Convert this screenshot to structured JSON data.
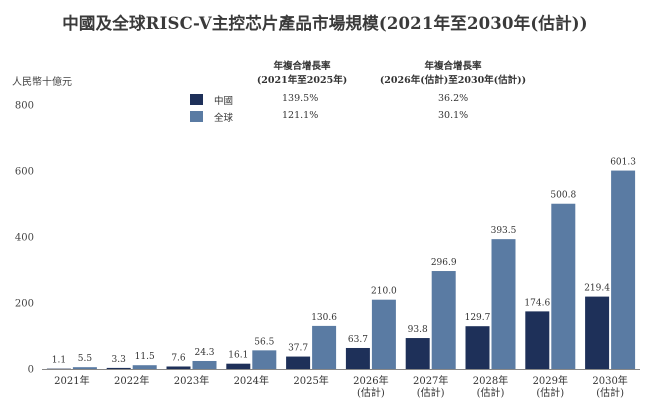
{
  "title": "中國及全球RISC-V主控芯片產品市場規模(2021年至2030年(估計))",
  "unit_label": "人民幣十億元",
  "cagr": {
    "header_1_line1": "年複合增長率",
    "header_1_line2": "(2021年至2025年)",
    "header_2_line1": "年複合增長率",
    "header_2_line2": "(2026年(估計)至2030年(估計))",
    "rows": [
      {
        "name": "中國",
        "color": "#1e3059",
        "cagr_1": "139.5%",
        "cagr_2": "36.2%"
      },
      {
        "name": "全球",
        "color": "#5a7ba3",
        "cagr_1": "121.1%",
        "cagr_2": "30.1%"
      }
    ]
  },
  "chart_data": {
    "type": "bar",
    "title": "中國及全球RISC-V主控芯片產品市場規模(2021年至2030年(估計))",
    "ylabel": "人民幣十億元",
    "ylim": [
      0,
      800
    ],
    "yticks": [
      "0",
      "200",
      "400",
      "600",
      "800"
    ],
    "grid": false,
    "categories": [
      [
        "2021年"
      ],
      [
        "2022年"
      ],
      [
        "2023年"
      ],
      [
        "2024年"
      ],
      [
        "2025年"
      ],
      [
        "2026年",
        "(估計)"
      ],
      [
        "2027年",
        "(估計)"
      ],
      [
        "2028年",
        "(估計)"
      ],
      [
        "2029年",
        "(估計)"
      ],
      [
        "2030年",
        "(估計)"
      ]
    ],
    "series": [
      {
        "name": "中國",
        "color": "#1e3059",
        "values": [
          1.1,
          3.3,
          7.6,
          16.1,
          37.7,
          63.7,
          93.8,
          129.7,
          174.6,
          219.4
        ],
        "labels": [
          "1.1",
          "3.3",
          "7.6",
          "16.1",
          "37.7",
          "63.7",
          "93.8",
          "129.7",
          "174.6",
          "219.4"
        ]
      },
      {
        "name": "全球",
        "color": "#5a7ba3",
        "values": [
          5.5,
          11.5,
          24.3,
          56.5,
          130.6,
          210.0,
          296.9,
          393.5,
          500.8,
          601.3
        ],
        "labels": [
          "5.5",
          "11.5",
          "24.3",
          "56.5",
          "130.6",
          "210.0",
          "296.9",
          "393.5",
          "500.8",
          "601.3"
        ]
      }
    ]
  }
}
